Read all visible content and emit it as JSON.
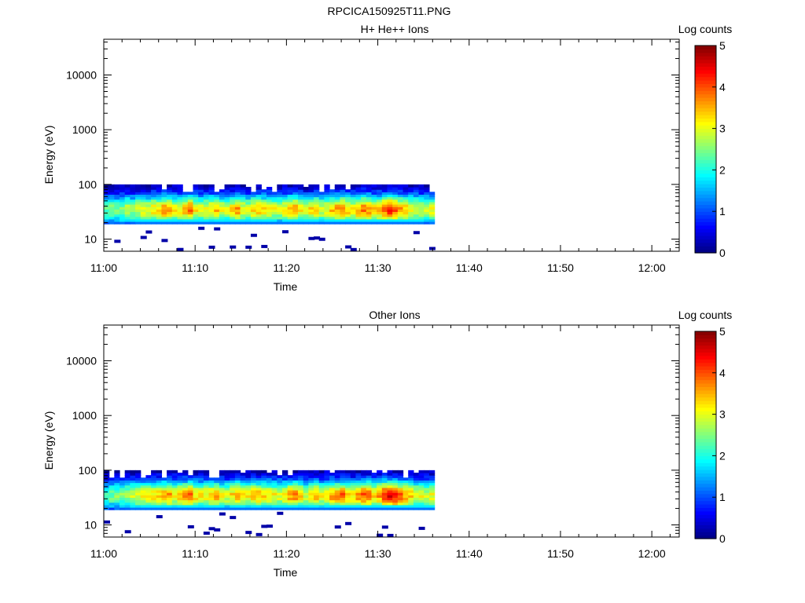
{
  "page_title": "RPCICA150925T11.PNG",
  "colorbar": {
    "label": "Log counts",
    "ticks": [
      "0",
      "1",
      "2",
      "3",
      "4",
      "5"
    ],
    "colormap": "jet"
  },
  "chart_data": [
    {
      "type": "heatmap",
      "title": "H+ He++ Ions",
      "xlabel": "Time",
      "ylabel": "Energy (eV)",
      "x_ticks": [
        "11:00",
        "11:10",
        "11:20",
        "11:30",
        "11:40",
        "11:50",
        "12:00"
      ],
      "y_ticks": [
        "10",
        "100",
        "1000",
        "10000"
      ],
      "y_scale": "log",
      "ylim": [
        6,
        45000
      ],
      "xlim_minutes": [
        0,
        63
      ],
      "zlim": [
        0,
        5
      ],
      "data_extent_minutes": [
        0,
        36.2
      ],
      "profile_peak_log_counts": [
        2.3,
        2.5,
        2.4,
        2.6,
        2.8,
        2.6,
        2.9,
        3.1,
        3.0,
        3.2,
        3.3,
        3.6,
        3.4,
        3.1,
        3.2,
        3.5,
        3.8,
        3.2,
        3.0,
        3.1,
        3.3,
        3.5,
        3.0,
        2.9,
        3.2,
        3.6,
        3.1,
        3.0,
        3.3,
        3.4,
        3.2,
        3.2,
        3.0,
        2.9,
        3.1,
        3.5,
        3.6,
        3.2,
        2.8,
        3.3,
        3.4,
        3.0,
        3.1,
        3.5,
        3.6,
        3.8,
        3.4,
        3.2,
        3.6,
        3.8,
        3.7,
        3.3,
        3.5,
        3.9,
        4.2,
        3.9,
        3.6,
        3.4,
        3.2,
        3.0,
        2.9,
        2.8,
        3.0
      ]
    },
    {
      "type": "heatmap",
      "title": "Other Ions",
      "xlabel": "Time",
      "ylabel": "Energy (eV)",
      "x_ticks": [
        "11:00",
        "11:10",
        "11:20",
        "11:30",
        "11:40",
        "11:50",
        "12:00"
      ],
      "y_ticks": [
        "10",
        "100",
        "1000",
        "10000"
      ],
      "y_scale": "log",
      "ylim": [
        6,
        45000
      ],
      "xlim_minutes": [
        0,
        63
      ],
      "zlim": [
        0,
        5
      ],
      "data_extent_minutes": [
        0,
        36.2
      ],
      "profile_peak_log_counts": [
        2.2,
        2.4,
        2.5,
        2.6,
        2.7,
        2.8,
        3.0,
        3.1,
        3.2,
        3.3,
        3.3,
        3.5,
        3.6,
        3.2,
        3.3,
        3.6,
        3.9,
        3.3,
        3.1,
        3.2,
        3.4,
        3.6,
        3.1,
        3.0,
        3.3,
        3.7,
        3.2,
        3.1,
        3.4,
        3.5,
        3.3,
        3.3,
        3.1,
        3.0,
        3.2,
        3.6,
        3.7,
        3.3,
        2.9,
        3.4,
        3.5,
        3.1,
        3.2,
        3.6,
        3.7,
        3.9,
        3.5,
        3.3,
        3.7,
        3.9,
        3.8,
        3.4,
        3.6,
        4.2,
        4.5,
        4.3,
        3.9,
        3.6,
        3.4,
        3.1,
        3.0,
        2.9,
        3.1
      ]
    }
  ]
}
